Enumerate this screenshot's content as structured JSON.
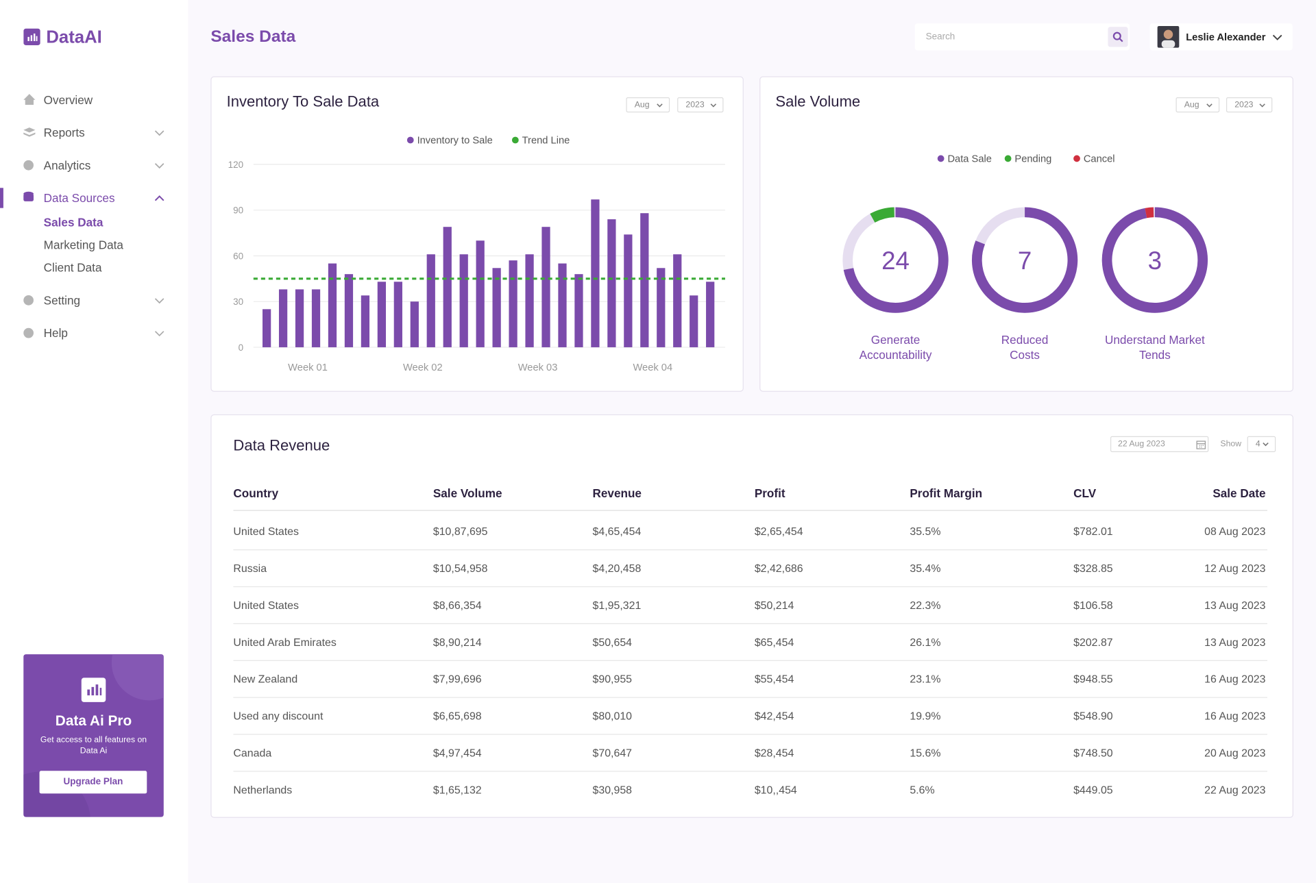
{
  "sidebar": {
    "logo": "DataAI",
    "nav": [
      {
        "label": "Overview"
      },
      {
        "label": "Reports"
      },
      {
        "label": "Analytics"
      },
      {
        "label": "Data Sources",
        "children": [
          "Sales Data",
          "Marketing Data",
          "Client Data"
        ]
      },
      {
        "label": "Setting"
      },
      {
        "label": "Help"
      }
    ],
    "promo": {
      "title": "Data Ai Pro",
      "text": "Get access to all features on Data Ai",
      "button": "Upgrade Plan"
    }
  },
  "header": {
    "title": "Sales Data",
    "search_placeholder": "Search",
    "user": "Leslie Alexander"
  },
  "inventory_chart": {
    "type": "bar",
    "title": "Inventory To Sale Data",
    "filters": [
      "Aug",
      "2023"
    ],
    "series_name": "Inventory to Sale",
    "color": "#7b4bab",
    "values": [
      25,
      38,
      38,
      38,
      55,
      48,
      34,
      43,
      43,
      30,
      61,
      79,
      61,
      70,
      52,
      57,
      61,
      79,
      55,
      48,
      97,
      84,
      74,
      88,
      52,
      61,
      34,
      43
    ],
    "trend": {
      "name": "Trend Line",
      "value": 45,
      "color": "#3aaa35"
    },
    "x_labels": [
      "Week 01",
      "Week 02",
      "Week 03",
      "Week 04"
    ],
    "ylim": [
      0,
      120
    ],
    "yticks": [
      0,
      30,
      60,
      90,
      120
    ],
    "grid": true
  },
  "sale_volume": {
    "type": "donut",
    "title": "Sale Volume",
    "filters": [
      "Aug",
      "2023"
    ],
    "series": [
      {
        "name": "Data Sale",
        "color": "#7b4bab",
        "values": [
          72,
          81,
          97
        ]
      },
      {
        "name": "Pending",
        "color": "#3aaa35",
        "values": [
          8,
          0,
          0
        ]
      },
      {
        "name": "Cancel",
        "color": "#d0303f",
        "values": [
          0,
          0,
          3
        ]
      }
    ],
    "totals": [
      24,
      7,
      3
    ],
    "labels": [
      "Generate Accountability",
      "Reduced Costs",
      "Understand Market Tends"
    ]
  },
  "revenue": {
    "title": "Data Revenue",
    "date": "22 Aug 2023",
    "show_label": "Show",
    "show_value": 4,
    "table": {
      "headers": [
        "Country",
        "Sale Volume",
        "Revenue",
        "Profit",
        "Profit Margin",
        "CLV",
        "Sale Date"
      ],
      "rows": [
        [
          "United States",
          "$10,87,695",
          "$4,65,454",
          "$2,65,454",
          "35.5%",
          "$782.01",
          "08 Aug 2023"
        ],
        [
          "Russia",
          "$10,54,958",
          "$4,20,458",
          "$2,42,686",
          "35.4%",
          "$328.85",
          "12 Aug 2023"
        ],
        [
          "United States",
          "$8,66,354",
          "$1,95,321",
          "$50,214",
          "22.3%",
          "$106.58",
          "13 Aug 2023"
        ],
        [
          "United Arab Emirates",
          "$8,90,214",
          "$50,654",
          "$65,454",
          "26.1%",
          "$202.87",
          "13 Aug 2023"
        ],
        [
          "New Zealand",
          "$7,99,696",
          "$90,955",
          "$55,454",
          "23.1%",
          "$948.55",
          "16 Aug 2023"
        ],
        [
          "Used any discount",
          "$6,65,698",
          "$80,010",
          "$42,454",
          "19.9%",
          "$548.90",
          "16 Aug 2023"
        ],
        [
          "Canada",
          "$4,97,454",
          "$70,647",
          "$28,454",
          "15.6%",
          "$748.50",
          "20 Aug 2023"
        ],
        [
          "Netherlands",
          "$1,65,132",
          "$30,958",
          "$10,,454",
          "5.6%",
          "$449.05",
          "22 Aug 2023"
        ]
      ]
    }
  }
}
